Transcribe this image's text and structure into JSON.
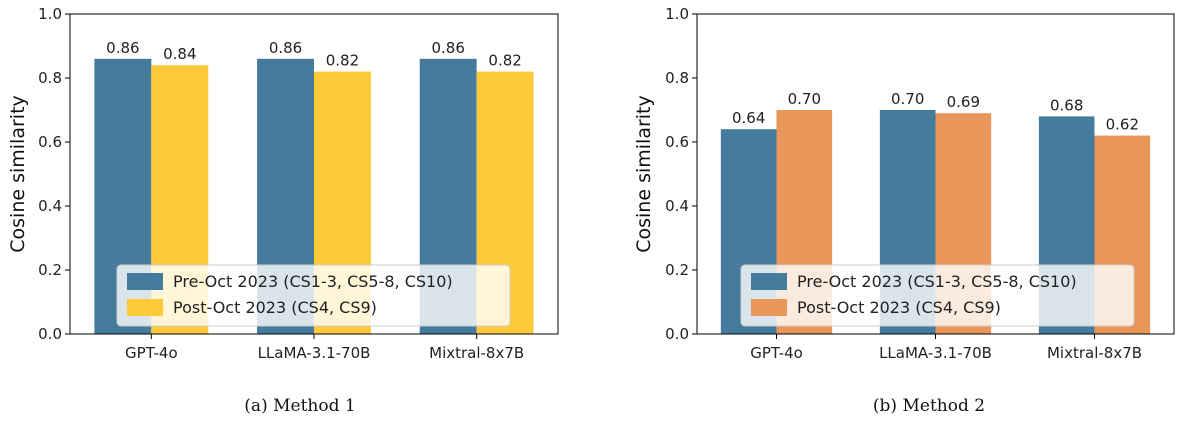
{
  "chart_data": [
    {
      "type": "bar",
      "caption": "(a) Method 1",
      "ylabel": "Cosine similarity",
      "ylim": [
        0.0,
        1.0
      ],
      "yticks": [
        "0.0",
        "0.2",
        "0.4",
        "0.6",
        "0.8",
        "1.0"
      ],
      "categories": [
        "GPT-4o",
        "LLaMA-3.1-70B",
        "Mixtral-8x7B"
      ],
      "series": [
        {
          "name": "Pre-Oct 2023 (CS1-3, CS5-8, CS10)",
          "color": "#457b9d",
          "values": [
            0.86,
            0.86,
            0.86
          ],
          "labels": [
            "0.86",
            "0.86",
            "0.86"
          ]
        },
        {
          "name": "Post-Oct 2023 (CS4, CS9)",
          "color": "#ffca3a",
          "values": [
            0.84,
            0.82,
            0.82
          ],
          "labels": [
            "0.84",
            "0.82",
            "0.82"
          ]
        }
      ],
      "legend": "bottom-center",
      "grid": false
    },
    {
      "type": "bar",
      "caption": "(b) Method 2",
      "ylabel": "Cosine similarity",
      "ylim": [
        0.0,
        1.0
      ],
      "yticks": [
        "0.0",
        "0.2",
        "0.4",
        "0.6",
        "0.8",
        "1.0"
      ],
      "categories": [
        "GPT-4o",
        "LLaMA-3.1-70B",
        "Mixtral-8x7B"
      ],
      "series": [
        {
          "name": "Pre-Oct 2023 (CS1-3, CS5-8, CS10)",
          "color": "#457b9d",
          "values": [
            0.64,
            0.7,
            0.68
          ],
          "labels": [
            "0.64",
            "0.70",
            "0.68"
          ]
        },
        {
          "name": "Post-Oct 2023 (CS4, CS9)",
          "color": "#e9965a",
          "values": [
            0.7,
            0.69,
            0.62
          ],
          "labels": [
            "0.70",
            "0.69",
            "0.62"
          ]
        }
      ],
      "legend": "bottom-center",
      "grid": false
    }
  ]
}
